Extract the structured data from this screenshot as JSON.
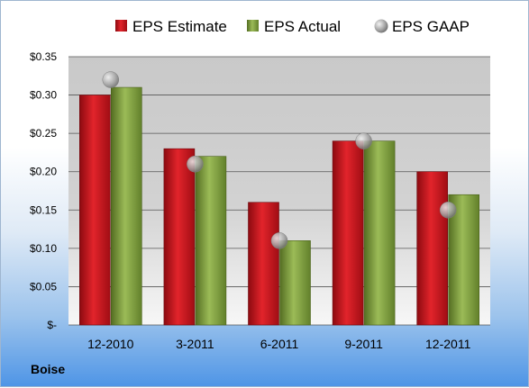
{
  "chart_data": {
    "type": "bar",
    "categories": [
      "12-2010",
      "3-2011",
      "6-2011",
      "9-2011",
      "12-2011"
    ],
    "series": [
      {
        "name": "EPS Estimate",
        "type": "bar",
        "values": [
          0.3,
          0.23,
          0.16,
          0.24,
          0.2
        ]
      },
      {
        "name": "EPS Actual",
        "type": "bar",
        "values": [
          0.31,
          0.22,
          0.11,
          0.24,
          0.17
        ]
      },
      {
        "name": "EPS GAAP",
        "type": "scatter",
        "values": [
          0.32,
          0.21,
          0.11,
          0.24,
          0.15
        ]
      }
    ],
    "y_ticks": [
      {
        "value": 0.35,
        "label": "$0.35"
      },
      {
        "value": 0.3,
        "label": "$0.30"
      },
      {
        "value": 0.25,
        "label": "$0.25"
      },
      {
        "value": 0.2,
        "label": "$0.20"
      },
      {
        "value": 0.15,
        "label": "$0.15"
      },
      {
        "value": 0.1,
        "label": "$0.10"
      },
      {
        "value": 0.05,
        "label": "$0.05"
      },
      {
        "value": 0,
        "label": "$-"
      }
    ],
    "ylim": [
      0,
      0.35
    ],
    "grid": true,
    "legend": "top",
    "colors": {
      "estimate": "#d0121b",
      "actual": "#7d9c3a",
      "gaap": "#a8a8a8"
    }
  },
  "company": "Boise"
}
